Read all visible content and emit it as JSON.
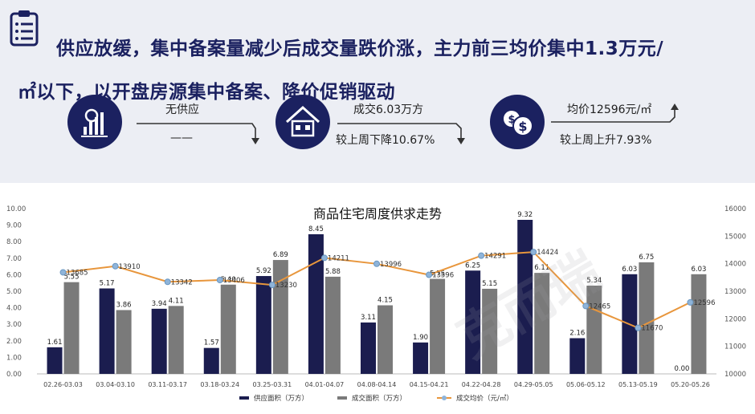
{
  "header": {
    "line1": "供应放缓，集中备案量减少后成交量跌价涨，主力前三均价集中1.3万元/",
    "line2": "㎡以下，以开盘房源集中备案、降价促销驱动"
  },
  "stats": [
    {
      "icon": "bar-chart-icon",
      "top": "无供应",
      "bottom": "——",
      "trend": "down"
    },
    {
      "icon": "house-icon",
      "top": "成交6.03万方",
      "bottom": "较上周下降10.67%",
      "trend": "down"
    },
    {
      "icon": "dollar-icon",
      "top": "均价12596元/㎡",
      "bottom": "较上周上升7.93%",
      "trend": "up"
    }
  ],
  "watermark": "克而瑞",
  "chart_data": {
    "type": "bar",
    "title": "商品住宅周度供求走势",
    "categories": [
      "02.26-03.03",
      "03.04-03.10",
      "03.11-03.17",
      "03.18-03.24",
      "03.25-03.31",
      "04.01-04.07",
      "04.08-04.14",
      "04.15-04.21",
      "04.22-04.28",
      "04.29-05.05",
      "05.06-05.12",
      "05.13-05.19",
      "05.20-05.26"
    ],
    "series": [
      {
        "name": "供应面积（万方）",
        "kind": "bar",
        "axis": "left",
        "color": "#1b1d4f",
        "values": [
          1.61,
          5.17,
          3.94,
          1.57,
          5.92,
          8.45,
          3.11,
          1.9,
          6.25,
          9.32,
          2.16,
          6.03,
          0.0
        ]
      },
      {
        "name": "成交面积（万方）",
        "kind": "bar",
        "axis": "left",
        "color": "#7a7a7a",
        "values": [
          5.55,
          3.86,
          4.11,
          5.4,
          6.89,
          5.88,
          4.15,
          5.75,
          5.15,
          6.11,
          5.34,
          6.75,
          6.03
        ]
      },
      {
        "name": "成交均价（元/㎡）",
        "kind": "line",
        "axis": "right",
        "color": "#e8963c",
        "values": [
          13685,
          13910,
          13342,
          13406,
          13230,
          14211,
          13996,
          13596,
          14291,
          14424,
          12465,
          11670,
          12596
        ]
      }
    ],
    "data_labels": {
      "supply": [
        "1.61",
        "5.17",
        "3.94",
        "1.57",
        "5.92",
        "8.45",
        "3.11",
        "1.90",
        "6.25",
        "9.32",
        "2.16",
        "6.03",
        "0.00"
      ],
      "sales": [
        "5.55",
        "3.86",
        "4.11",
        "5.40",
        "6.89",
        "5.88",
        "4.15",
        "5.75",
        "5.15",
        "6.11",
        "5.34",
        "6.75",
        "6.03"
      ],
      "price": [
        "13685",
        "13910",
        "13342",
        "13406",
        "13230",
        "14211",
        "13996",
        "13596",
        "14291",
        "14424",
        "12465",
        "11670",
        "12596"
      ]
    },
    "ylim_left": [
      0,
      10
    ],
    "yticks_left": [
      "0.00",
      "1.00",
      "2.00",
      "3.00",
      "4.00",
      "5.00",
      "6.00",
      "7.00",
      "8.00",
      "9.00",
      "10.00"
    ],
    "ylim_right": [
      10000,
      16000
    ],
    "yticks_right": [
      "10000",
      "11000",
      "12000",
      "13000",
      "14000",
      "15000",
      "16000"
    ],
    "legend_position": "bottom",
    "grid": false
  }
}
